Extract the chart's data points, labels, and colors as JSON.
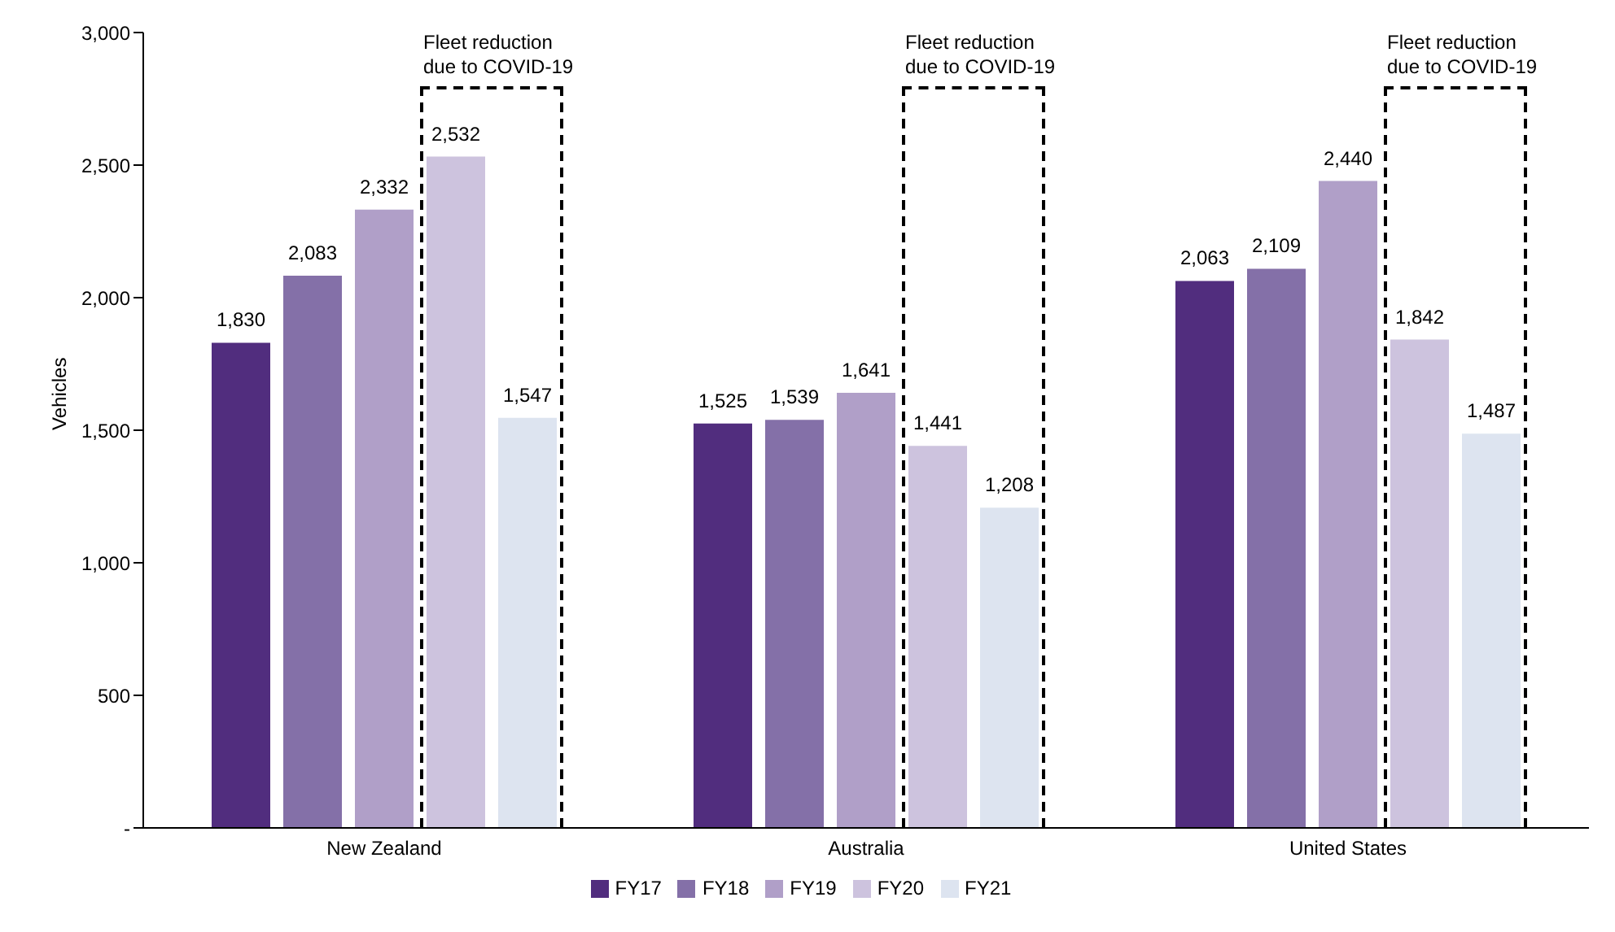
{
  "chart_data": {
    "type": "bar",
    "ylabel": "Vehicles",
    "categories": [
      "New Zealand",
      "Australia",
      "United States"
    ],
    "series": [
      {
        "name": "FY17",
        "color": "#512d7e",
        "values": [
          1830,
          1525,
          2063
        ],
        "value_labels": [
          "1,830",
          "1,525",
          "2,063"
        ]
      },
      {
        "name": "FY18",
        "color": "#8470a8",
        "values": [
          2083,
          1539,
          2109
        ],
        "value_labels": [
          "2,083",
          "1,539",
          "2,109"
        ]
      },
      {
        "name": "FY19",
        "color": "#b09fc8",
        "values": [
          2332,
          1641,
          2440
        ],
        "value_labels": [
          "2,332",
          "1,641",
          "2,440"
        ]
      },
      {
        "name": "FY20",
        "color": "#cdc3de",
        "values": [
          2532,
          1441,
          1842
        ],
        "value_labels": [
          "2,532",
          "1,441",
          "1,842"
        ]
      },
      {
        "name": "FY21",
        "color": "#dde4f0",
        "values": [
          1547,
          1208,
          1487
        ],
        "value_labels": [
          "1,547",
          "1,208",
          "1,487"
        ]
      }
    ],
    "ylim": [
      0,
      3000
    ],
    "yticks": [
      {
        "value": 0,
        "label": "-"
      },
      {
        "value": 500,
        "label": "500"
      },
      {
        "value": 1000,
        "label": "1,000"
      },
      {
        "value": 1500,
        "label": "1,500"
      },
      {
        "value": 2000,
        "label": "2,000"
      },
      {
        "value": 2500,
        "label": "2,500"
      },
      {
        "value": 3000,
        "label": "3,000"
      }
    ],
    "grid": false,
    "legend": "bottom",
    "annotations": [
      "Fleet reduction due to COVID-19",
      "Fleet reduction due to COVID-19",
      "Fleet reduction due to COVID-19"
    ]
  }
}
